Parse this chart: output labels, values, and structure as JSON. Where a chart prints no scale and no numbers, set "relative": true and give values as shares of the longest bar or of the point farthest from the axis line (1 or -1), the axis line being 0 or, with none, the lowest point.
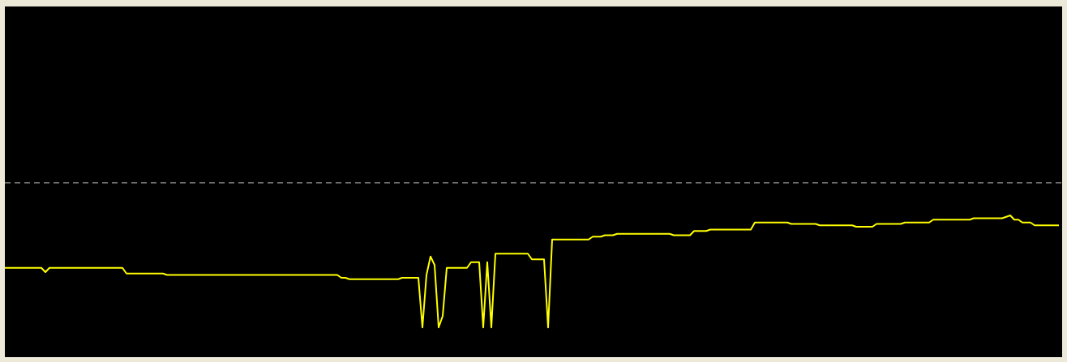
{
  "chart_data": {
    "type": "line",
    "relative": true,
    "categories": [
      null,
      null,
      null,
      null,
      null,
      null,
      null,
      null,
      null,
      null,
      null,
      null,
      null,
      null,
      null,
      null,
      null,
      null,
      null,
      null,
      null,
      null,
      null,
      null,
      null,
      null,
      null,
      null,
      null,
      null,
      null,
      null,
      null,
      null,
      null,
      null,
      null,
      null,
      null,
      null,
      null,
      null,
      null,
      null,
      null,
      null,
      null,
      null,
      null,
      null,
      null,
      null,
      null,
      null,
      null,
      null,
      null,
      null,
      null,
      null,
      null,
      null,
      null,
      null,
      null,
      null,
      null,
      null,
      null,
      null,
      null,
      null,
      null,
      null,
      null,
      null,
      null,
      null,
      null,
      null,
      null,
      null,
      null,
      null,
      null,
      null,
      null,
      null,
      null,
      null,
      null,
      null,
      null,
      null,
      null,
      null,
      null,
      null,
      null,
      null,
      null,
      null,
      null,
      null,
      null,
      null,
      null,
      null,
      null,
      null,
      null,
      null,
      null,
      null,
      null,
      null,
      null,
      null,
      null,
      null,
      null,
      null,
      null,
      null,
      null,
      null,
      null,
      null,
      null,
      null,
      null,
      null,
      null,
      null,
      null,
      null,
      null,
      null,
      null,
      null,
      null,
      null,
      null,
      null,
      null,
      null,
      null,
      null,
      null,
      null,
      null,
      null,
      null,
      null,
      null,
      null,
      null,
      null,
      null,
      null,
      null,
      null,
      null,
      null,
      null,
      null,
      null,
      null,
      null,
      null,
      null,
      null,
      null,
      null,
      null,
      null,
      null,
      null,
      null,
      null,
      null,
      null,
      null,
      null,
      null,
      null,
      null,
      null,
      null,
      null,
      null,
      null,
      null,
      null,
      null,
      null,
      null,
      null,
      null,
      null,
      null,
      null,
      null,
      null,
      null,
      null,
      null,
      null,
      null,
      null,
      null,
      null,
      null,
      null,
      null,
      null,
      null,
      null,
      null,
      null,
      null,
      null,
      null,
      null,
      null,
      null,
      null,
      null,
      null,
      null,
      null,
      null,
      null,
      null,
      null,
      null,
      null,
      null,
      null,
      null,
      null,
      null,
      null,
      null,
      null,
      null,
      null,
      null,
      null,
      null,
      null,
      null,
      null,
      null,
      null,
      null,
      null,
      null,
      null,
      null,
      null
    ],
    "series": [
      {
        "color": "#ffff00",
        "values": [
          0.63,
          0.63,
          0.63,
          0.63,
          0.63,
          0.63,
          0.63,
          0.63,
          0.63,
          0.63,
          0.6,
          0.63,
          0.63,
          0.63,
          0.63,
          0.63,
          0.63,
          0.63,
          0.63,
          0.63,
          0.63,
          0.63,
          0.63,
          0.63,
          0.63,
          0.63,
          0.63,
          0.63,
          0.63,
          0.63,
          0.59,
          0.59,
          0.59,
          0.59,
          0.59,
          0.59,
          0.59,
          0.59,
          0.59,
          0.59,
          0.58,
          0.58,
          0.58,
          0.58,
          0.58,
          0.58,
          0.58,
          0.58,
          0.58,
          0.58,
          0.58,
          0.58,
          0.58,
          0.58,
          0.58,
          0.58,
          0.58,
          0.58,
          0.58,
          0.58,
          0.58,
          0.58,
          0.58,
          0.58,
          0.58,
          0.58,
          0.58,
          0.58,
          0.58,
          0.58,
          0.58,
          0.58,
          0.58,
          0.58,
          0.58,
          0.58,
          0.58,
          0.58,
          0.58,
          0.58,
          0.58,
          0.58,
          0.58,
          0.56,
          0.56,
          0.55,
          0.55,
          0.55,
          0.55,
          0.55,
          0.55,
          0.55,
          0.55,
          0.55,
          0.55,
          0.55,
          0.55,
          0.55,
          0.56,
          0.56,
          0.56,
          0.56,
          0.56,
          0.21,
          0.58,
          0.71,
          0.65,
          0.21,
          0.29,
          0.63,
          0.63,
          0.63,
          0.63,
          0.63,
          0.63,
          0.67,
          0.67,
          0.67,
          0.21,
          0.67,
          0.21,
          0.73,
          0.73,
          0.73,
          0.73,
          0.73,
          0.73,
          0.73,
          0.73,
          0.73,
          0.69,
          0.69,
          0.69,
          0.69,
          0.21,
          0.83,
          0.83,
          0.83,
          0.83,
          0.83,
          0.83,
          0.83,
          0.83,
          0.83,
          0.83,
          0.85,
          0.85,
          0.85,
          0.86,
          0.86,
          0.86,
          0.87,
          0.87,
          0.87,
          0.87,
          0.87,
          0.87,
          0.87,
          0.87,
          0.87,
          0.87,
          0.87,
          0.87,
          0.87,
          0.87,
          0.86,
          0.86,
          0.86,
          0.86,
          0.86,
          0.89,
          0.89,
          0.89,
          0.89,
          0.9,
          0.9,
          0.9,
          0.9,
          0.9,
          0.9,
          0.9,
          0.9,
          0.9,
          0.9,
          0.9,
          0.95,
          0.95,
          0.95,
          0.95,
          0.95,
          0.95,
          0.95,
          0.95,
          0.95,
          0.94,
          0.94,
          0.94,
          0.94,
          0.94,
          0.94,
          0.94,
          0.93,
          0.93,
          0.93,
          0.93,
          0.93,
          0.93,
          0.93,
          0.93,
          0.93,
          0.92,
          0.92,
          0.92,
          0.92,
          0.92,
          0.94,
          0.94,
          0.94,
          0.94,
          0.94,
          0.94,
          0.94,
          0.95,
          0.95,
          0.95,
          0.95,
          0.95,
          0.95,
          0.95,
          0.97,
          0.97,
          0.97,
          0.97,
          0.97,
          0.97,
          0.97,
          0.97,
          0.97,
          0.97,
          0.98,
          0.98,
          0.98,
          0.98,
          0.98,
          0.98,
          0.98,
          0.98,
          0.99,
          1,
          0.97,
          0.97,
          0.95,
          0.95,
          0.95,
          0.93,
          0.93,
          0.93,
          0.93,
          0.93,
          0.93,
          0.93
        ]
      }
    ],
    "ref_lines": [
      {
        "axis": "y",
        "value": 1.23,
        "color": "#808080",
        "line_style": "dashed"
      }
    ]
  }
}
